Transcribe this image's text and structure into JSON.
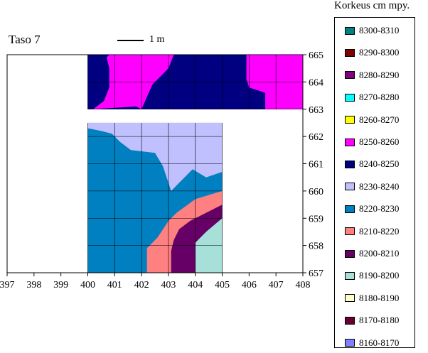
{
  "chart_data": {
    "type": "heatmap",
    "title": "Taso 7",
    "scale_label": "1 m",
    "xlim": [
      397,
      408
    ],
    "ylim": [
      657,
      665
    ],
    "x_ticks": [
      "397",
      "398",
      "399",
      "400",
      "401",
      "402",
      "403",
      "404",
      "405",
      "406",
      "407",
      "408"
    ],
    "y_ticks": [
      "657",
      "658",
      "659",
      "660",
      "661",
      "662",
      "663",
      "664",
      "665"
    ],
    "legend_title": "Korkeus cm mpy.",
    "legend_placement": "right",
    "grid": true,
    "colors": {
      "8300-8310": "#008080",
      "8290-8300": "#800000",
      "8280-8290": "#800080",
      "8270-8280": "#00ffff",
      "8260-8270": "#ffff00",
      "8250-8260": "#ff00ff",
      "8240-8250": "#000080",
      "8230-8240": "#c0c0ff",
      "8220-8230": "#0080c0",
      "8210-8220": "#ff8080",
      "8200-8210": "#660066",
      "8190-8200": "#a6e0d8",
      "8180-8190": "#ffffcc",
      "8170-8180": "#660033",
      "8160-8170": "#7f7fff"
    },
    "legend": [
      "8300-8310",
      "8290-8300",
      "8280-8290",
      "8270-8280",
      "8260-8270",
      "8250-8260",
      "8240-8250",
      "8230-8240",
      "8220-8230",
      "8210-8220",
      "8200-8210",
      "8190-8200",
      "8180-8190",
      "8170-8180",
      "8160-8170"
    ],
    "upper_block": {
      "x": [
        400,
        408
      ],
      "y": [
        663,
        665
      ],
      "base": "8240-8250",
      "regions": [
        {
          "range": "8250-8260",
          "points": [
            [
              400.8,
              665
            ],
            [
              403.2,
              665
            ],
            [
              403.0,
              664.5
            ],
            [
              402.4,
              663.9
            ],
            [
              402.0,
              663.0
            ],
            [
              401.8,
              663.1
            ],
            [
              400.2,
              663.0
            ],
            [
              400.6,
              663.3
            ],
            [
              400.8,
              663.8
            ],
            [
              400.8,
              664.5
            ],
            [
              400.7,
              664.9
            ]
          ]
        },
        {
          "range": "8250-8260",
          "points": [
            [
              405.9,
              665
            ],
            [
              408,
              665
            ],
            [
              408,
              663
            ],
            [
              406.6,
              663
            ],
            [
              406.6,
              663.6
            ],
            [
              406.0,
              663.8
            ],
            [
              405.9,
              664.1
            ]
          ]
        }
      ]
    },
    "lower_block": {
      "x": [
        400,
        405
      ],
      "y": [
        657,
        662.5
      ],
      "base": "8220-8230",
      "regions": [
        {
          "range": "8230-8240",
          "points": [
            [
              400,
              662.5
            ],
            [
              405,
              662.5
            ],
            [
              405,
              660.7
            ],
            [
              404.4,
              660.5
            ],
            [
              403.9,
              660.8
            ],
            [
              403.4,
              660.3
            ],
            [
              403.1,
              660.0
            ],
            [
              402.8,
              660.9
            ],
            [
              402.5,
              661.4
            ],
            [
              401.6,
              661.5
            ],
            [
              401.2,
              661.8
            ],
            [
              400.9,
              662.1
            ],
            [
              400.5,
              662.2
            ],
            [
              400,
              662.3
            ]
          ]
        },
        {
          "range": "8210-8220",
          "points": [
            [
              405,
              660
            ],
            [
              404.0,
              659.7
            ],
            [
              403.3,
              659.2
            ],
            [
              403.0,
              658.9
            ],
            [
              402.6,
              658.3
            ],
            [
              402.2,
              657.9
            ],
            [
              402.2,
              657
            ],
            [
              405,
              657
            ]
          ]
        },
        {
          "range": "8200-8210",
          "points": [
            [
              405,
              659.5
            ],
            [
              404.4,
              659.2
            ],
            [
              403.8,
              658.9
            ],
            [
              403.4,
              658.6
            ],
            [
              403.2,
              658.2
            ],
            [
              403.1,
              657.8
            ],
            [
              403.1,
              657
            ],
            [
              405,
              657
            ]
          ]
        },
        {
          "range": "8190-8200",
          "points": [
            [
              405,
              659.0
            ],
            [
              404.4,
              658.5
            ],
            [
              404.0,
              658.1
            ],
            [
              404.0,
              657
            ],
            [
              405,
              657
            ]
          ]
        }
      ]
    }
  }
}
